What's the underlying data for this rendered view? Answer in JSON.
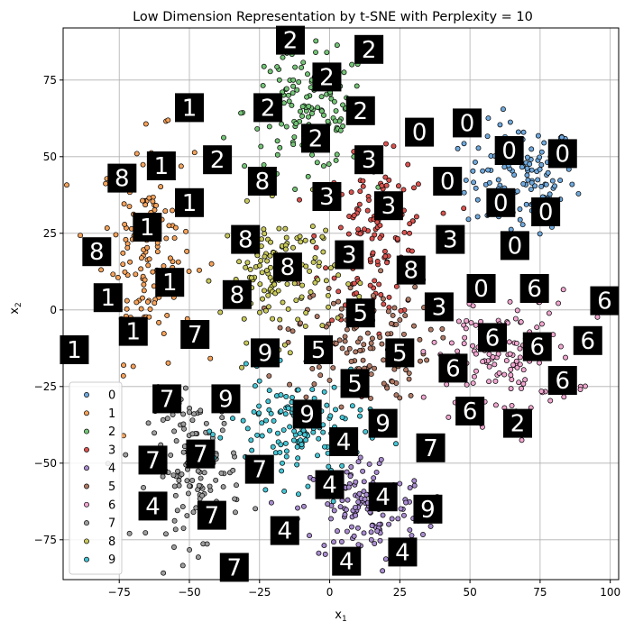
{
  "chart_data": {
    "type": "scatter",
    "title": "Low Dimension Representation by t-SNE with Perplexity = 10",
    "xlabel": "x",
    "xlabel_sub": "1",
    "ylabel": "x",
    "ylabel_sub": "2",
    "xlim": [
      -95,
      103
    ],
    "ylim": [
      -88,
      92
    ],
    "xticks": [
      -75,
      -50,
      -25,
      0,
      25,
      50,
      75,
      100
    ],
    "yticks": [
      -75,
      -50,
      -25,
      0,
      25,
      50,
      75
    ],
    "xtick_labels": [
      "−75",
      "−50",
      "−25",
      "0",
      "25",
      "50",
      "75",
      "100"
    ],
    "ytick_labels": [
      "−75",
      "−50",
      "−25",
      "0",
      "25",
      "50",
      "75"
    ],
    "grid": true,
    "legend_position": "lower-left",
    "classes": [
      {
        "name": "0",
        "color": "#6fa8dc",
        "center": [
          68,
          43
        ],
        "spread": [
          13,
          12
        ]
      },
      {
        "name": "1",
        "color": "#f6a25a",
        "center": [
          -65,
          20
        ],
        "spread": [
          11,
          24
        ]
      },
      {
        "name": "2",
        "color": "#74c476",
        "center": [
          -8,
          65
        ],
        "spread": [
          15,
          13
        ]
      },
      {
        "name": "3",
        "color": "#d9534f",
        "center": [
          17,
          23
        ],
        "spread": [
          13,
          17
        ]
      },
      {
        "name": "4",
        "color": "#a88ccf",
        "center": [
          12,
          -65
        ],
        "spread": [
          15,
          12
        ]
      },
      {
        "name": "5",
        "color": "#b07a66",
        "center": [
          10,
          -10
        ],
        "spread": [
          17,
          13
        ]
      },
      {
        "name": "6",
        "color": "#f0a6cf",
        "center": [
          62,
          -15
        ],
        "spread": [
          17,
          14
        ]
      },
      {
        "name": "7",
        "color": "#9e9e9e",
        "center": [
          -48,
          -52
        ],
        "spread": [
          11,
          16
        ]
      },
      {
        "name": "8",
        "color": "#c7c85a",
        "center": [
          -18,
          12
        ],
        "spread": [
          14,
          14
        ]
      },
      {
        "name": "9",
        "color": "#45c4d3",
        "center": [
          -12,
          -40
        ],
        "spread": [
          16,
          12
        ]
      }
    ],
    "thumbnails": [
      {
        "label": "2",
        "x": -14,
        "y": 88
      },
      {
        "label": "2",
        "x": 14,
        "y": 85
      },
      {
        "label": "2",
        "x": -1,
        "y": 76
      },
      {
        "label": "2",
        "x": -22,
        "y": 66
      },
      {
        "label": "2",
        "x": 11,
        "y": 65
      },
      {
        "label": "2",
        "x": -5,
        "y": 56
      },
      {
        "label": "2",
        "x": -40,
        "y": 49
      },
      {
        "label": "1",
        "x": -50,
        "y": 66
      },
      {
        "label": "1",
        "x": -60,
        "y": 47
      },
      {
        "label": "1",
        "x": -50,
        "y": 35
      },
      {
        "label": "1",
        "x": -65,
        "y": 27
      },
      {
        "label": "1",
        "x": -57,
        "y": 9
      },
      {
        "label": "1",
        "x": -79,
        "y": 4
      },
      {
        "label": "1",
        "x": -70,
        "y": -7
      },
      {
        "label": "1",
        "x": -91,
        "y": -13
      },
      {
        "label": "8",
        "x": -74,
        "y": 43
      },
      {
        "label": "8",
        "x": -83,
        "y": 19
      },
      {
        "label": "8",
        "x": -24,
        "y": 42
      },
      {
        "label": "8",
        "x": -30,
        "y": 23
      },
      {
        "label": "8",
        "x": -15,
        "y": 14
      },
      {
        "label": "8",
        "x": -33,
        "y": 5
      },
      {
        "label": "8",
        "x": 29,
        "y": 13
      },
      {
        "label": "3",
        "x": 14,
        "y": 49
      },
      {
        "label": "3",
        "x": -1,
        "y": 37
      },
      {
        "label": "3",
        "x": 21,
        "y": 34
      },
      {
        "label": "3",
        "x": 7,
        "y": 18
      },
      {
        "label": "3",
        "x": 43,
        "y": 23
      },
      {
        "label": "3",
        "x": 39,
        "y": 1
      },
      {
        "label": "0",
        "x": 32,
        "y": 58
      },
      {
        "label": "0",
        "x": 49,
        "y": 61
      },
      {
        "label": "0",
        "x": 64,
        "y": 52
      },
      {
        "label": "0",
        "x": 83,
        "y": 51
      },
      {
        "label": "0",
        "x": 42,
        "y": 42
      },
      {
        "label": "0",
        "x": 61,
        "y": 35
      },
      {
        "label": "0",
        "x": 77,
        "y": 32
      },
      {
        "label": "0",
        "x": 66,
        "y": 21
      },
      {
        "label": "0",
        "x": 54,
        "y": 7
      },
      {
        "label": "6",
        "x": 73,
        "y": 7
      },
      {
        "label": "6",
        "x": 98,
        "y": 3
      },
      {
        "label": "6",
        "x": 58,
        "y": -9
      },
      {
        "label": "6",
        "x": 74,
        "y": -12
      },
      {
        "label": "6",
        "x": 92,
        "y": -10
      },
      {
        "label": "6",
        "x": 44,
        "y": -19
      },
      {
        "label": "6",
        "x": 83,
        "y": -23
      },
      {
        "label": "6",
        "x": 50,
        "y": -33
      },
      {
        "label": "2",
        "x": 67,
        "y": -37
      },
      {
        "label": "5",
        "x": 11,
        "y": -1
      },
      {
        "label": "5",
        "x": -4,
        "y": -13
      },
      {
        "label": "5",
        "x": 25,
        "y": -14
      },
      {
        "label": "5",
        "x": 9,
        "y": -24
      },
      {
        "label": "9",
        "x": -23,
        "y": -14
      },
      {
        "label": "9",
        "x": -37,
        "y": -29
      },
      {
        "label": "9",
        "x": -8,
        "y": -34
      },
      {
        "label": "9",
        "x": 19,
        "y": -37
      },
      {
        "label": "9",
        "x": 35,
        "y": -65
      },
      {
        "label": "7",
        "x": -48,
        "y": -8
      },
      {
        "label": "7",
        "x": -58,
        "y": -29
      },
      {
        "label": "7",
        "x": -63,
        "y": -49
      },
      {
        "label": "7",
        "x": -46,
        "y": -47
      },
      {
        "label": "7",
        "x": -25,
        "y": -52
      },
      {
        "label": "7",
        "x": -42,
        "y": -67
      },
      {
        "label": "7",
        "x": -34,
        "y": -84
      },
      {
        "label": "7",
        "x": 36,
        "y": -45
      },
      {
        "label": "4",
        "x": -63,
        "y": -64
      },
      {
        "label": "4",
        "x": 5,
        "y": -43
      },
      {
        "label": "4",
        "x": 0,
        "y": -57
      },
      {
        "label": "4",
        "x": 19,
        "y": -61
      },
      {
        "label": "4",
        "x": -16,
        "y": -72
      },
      {
        "label": "4",
        "x": 6,
        "y": -82
      },
      {
        "label": "4",
        "x": 26,
        "y": -79
      }
    ]
  }
}
